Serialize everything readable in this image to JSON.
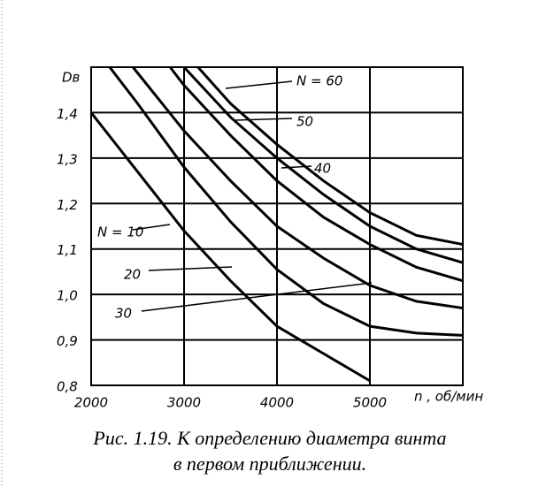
{
  "chart_data": {
    "type": "line",
    "y_label": "Dв",
    "x_label": "n , об/мин",
    "caption": [
      "Рис. 1.19. К определению диаметра винта",
      "в первом приближении."
    ],
    "xlim": [
      2000,
      6000
    ],
    "ylim": [
      0.8,
      1.5
    ],
    "xticks": [
      2000,
      3000,
      4000,
      5000
    ],
    "yticks": [
      {
        "value": 0.8,
        "label": "0,8"
      },
      {
        "value": 0.9,
        "label": "0,9"
      },
      {
        "value": 1.0,
        "label": "1,0"
      },
      {
        "value": 1.1,
        "label": "1,1"
      },
      {
        "value": 1.2,
        "label": "1,2"
      },
      {
        "value": 1.3,
        "label": "1,3"
      },
      {
        "value": 1.4,
        "label": "1,4"
      }
    ],
    "grid": true,
    "series": [
      {
        "name": "N = 10",
        "color": "#000000",
        "x": [
          2000,
          2500,
          3000,
          3500,
          4000,
          4500,
          5000
        ],
        "values": [
          1.4,
          1.27,
          1.14,
          1.03,
          0.93,
          0.87,
          0.81
        ]
      },
      {
        "name": "20",
        "color": "#000000",
        "x": [
          2200,
          2500,
          3000,
          3500,
          4000,
          4500,
          5000,
          5500,
          6000
        ],
        "values": [
          1.5,
          1.42,
          1.28,
          1.16,
          1.055,
          0.98,
          0.93,
          0.915,
          0.91
        ]
      },
      {
        "name": "30",
        "color": "#000000",
        "x": [
          2450,
          3000,
          3500,
          4000,
          4500,
          5000,
          5500,
          6000
        ],
        "values": [
          1.5,
          1.36,
          1.25,
          1.15,
          1.08,
          1.02,
          0.985,
          0.97
        ]
      },
      {
        "name": "40",
        "color": "#000000",
        "x": [
          2850,
          3000,
          3500,
          4000,
          4500,
          5000,
          5500,
          6000
        ],
        "values": [
          1.5,
          1.46,
          1.35,
          1.25,
          1.17,
          1.11,
          1.06,
          1.03
        ]
      },
      {
        "name": "50",
        "color": "#000000",
        "x": [
          3000,
          3500,
          4000,
          4500,
          5000,
          5500,
          6000
        ],
        "values": [
          1.5,
          1.39,
          1.3,
          1.22,
          1.15,
          1.1,
          1.07
        ]
      },
      {
        "name": "N = 60",
        "color": "#000000",
        "x": [
          3150,
          3500,
          4000,
          4500,
          5000,
          5500,
          6000
        ],
        "values": [
          1.5,
          1.42,
          1.33,
          1.25,
          1.18,
          1.13,
          1.11
        ]
      }
    ]
  }
}
